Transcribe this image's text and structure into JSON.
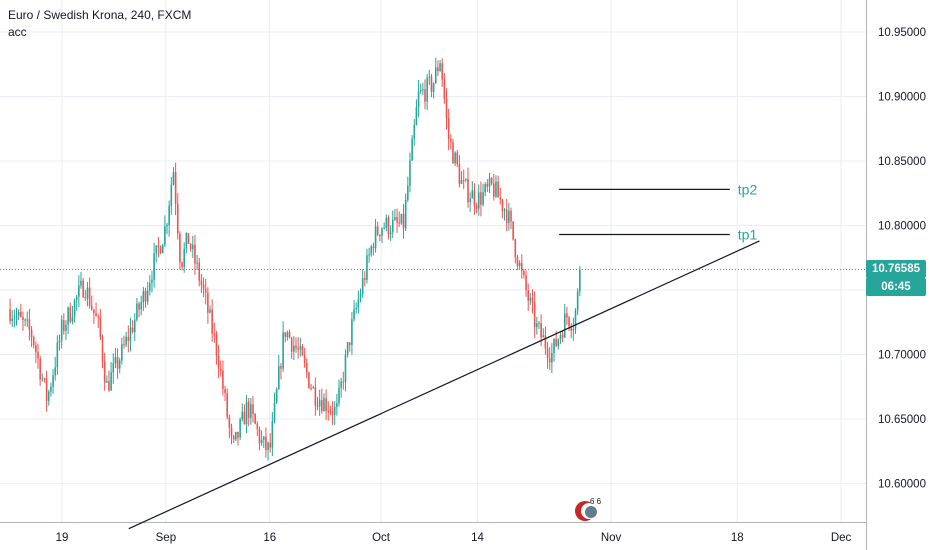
{
  "header": {
    "title": "Euro / Swedish Krona, 240, FXCM",
    "indicator": "acc"
  },
  "colors": {
    "up": "#26a69a",
    "down": "#ef5350",
    "grid": "#e9eef3",
    "axis": "#b2b5be",
    "price_line": "#26a69a",
    "annotation": "#131722"
  },
  "price_label": "10.76585",
  "countdown_label": "06:45",
  "chart_data": {
    "type": "candlestick",
    "title": "Euro / Swedish Krona, 240, FXCM",
    "y_ticks": [
      "10.95000",
      "10.90000",
      "10.85000",
      "10.80000",
      "10.75000",
      "10.70000",
      "10.65000",
      "10.60000"
    ],
    "y_tick_values": [
      10.95,
      10.9,
      10.85,
      10.8,
      10.75,
      10.7,
      10.65,
      10.6
    ],
    "x_ticks": [
      "19",
      "Sep",
      "16",
      "Oct",
      "14",
      "Nov",
      "18",
      "Dec"
    ],
    "ylim": [
      10.565,
      10.975
    ],
    "grid": true,
    "last_price": 10.76585,
    "close_path": [
      [
        "2019-08-12",
        10.735
      ],
      [
        "2019-08-15",
        10.715
      ],
      [
        "2019-08-17",
        10.665
      ],
      [
        "2019-08-19",
        10.72
      ],
      [
        "2019-08-22",
        10.755
      ],
      [
        "2019-08-24",
        10.72
      ],
      [
        "2019-08-25",
        10.675
      ],
      [
        "2019-08-27",
        10.7
      ],
      [
        "2019-08-30",
        10.745
      ],
      [
        "2019-09-02",
        10.8
      ],
      [
        "2019-09-03",
        10.845
      ],
      [
        "2019-09-04",
        10.77
      ],
      [
        "2019-09-05",
        10.79
      ],
      [
        "2019-09-07",
        10.75
      ],
      [
        "2019-09-09",
        10.7
      ],
      [
        "2019-09-11",
        10.625
      ],
      [
        "2019-09-13",
        10.66
      ],
      [
        "2019-09-15",
        10.63
      ],
      [
        "2019-09-16",
        10.625
      ],
      [
        "2019-09-18",
        10.72
      ],
      [
        "2019-09-20",
        10.7
      ],
      [
        "2019-09-22",
        10.67
      ],
      [
        "2019-09-25",
        10.655
      ],
      [
        "2019-09-27",
        10.72
      ],
      [
        "2019-09-30",
        10.79
      ],
      [
        "2019-10-01",
        10.8
      ],
      [
        "2019-10-04",
        10.8
      ],
      [
        "2019-10-06",
        10.9
      ],
      [
        "2019-10-08",
        10.91
      ],
      [
        "2019-10-09",
        10.93
      ],
      [
        "2019-10-10",
        10.87
      ],
      [
        "2019-10-12",
        10.83
      ],
      [
        "2019-10-14",
        10.82
      ],
      [
        "2019-10-16",
        10.83
      ],
      [
        "2019-10-18",
        10.81
      ],
      [
        "2019-10-20",
        10.76
      ],
      [
        "2019-10-22",
        10.72
      ],
      [
        "2019-10-24",
        10.7
      ],
      [
        "2019-10-26",
        10.73
      ],
      [
        "2019-10-27",
        10.725
      ],
      [
        "2019-10-28",
        10.76585
      ]
    ],
    "trendline": {
      "start": [
        "2019-08-28",
        10.565
      ],
      "end": [
        "2019-11-21",
        10.788
      ]
    },
    "annotations": [
      {
        "label": "tp2",
        "price": 10.828,
        "from": "2019-10-25",
        "to": "2019-11-17"
      },
      {
        "label": "tp1",
        "price": 10.793,
        "from": "2019-10-25",
        "to": "2019-11-17"
      }
    ]
  }
}
